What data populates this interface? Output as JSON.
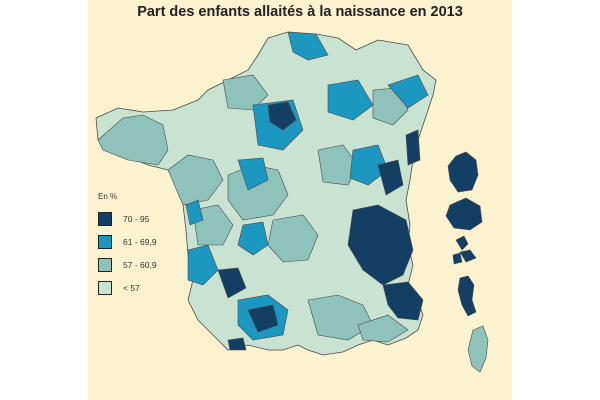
{
  "title": "Part des enfants allaités à la naissance en 2013",
  "legend": {
    "unit": "En %",
    "classes": [
      {
        "label": "70 - 95",
        "color": "#123f63"
      },
      {
        "label": "61 - 69,9",
        "color": "#1c97c0"
      },
      {
        "label": "57 - 60,9",
        "color": "#8fc2bb"
      },
      {
        "label": "< 57",
        "color": "#c9e3d2"
      }
    ]
  },
  "colors": {
    "background": "#fbf2cf",
    "borders": "#4a4a4a"
  }
}
